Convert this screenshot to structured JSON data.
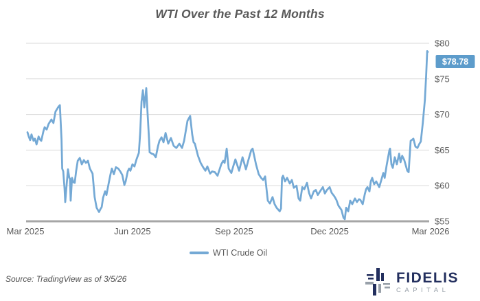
{
  "title": "WTI Over the Past 12 Months",
  "chart_data": {
    "type": "line",
    "title": "WTI Over the Past 12 Months",
    "xlabel": "",
    "ylabel": "",
    "ylim": [
      55,
      80
    ],
    "xlim_months": [
      0,
      12.05
    ],
    "grid": true,
    "legend_position": "bottom-center",
    "y_ticks": [
      {
        "v": 55,
        "label": "$55"
      },
      {
        "v": 60,
        "label": "$60"
      },
      {
        "v": 65,
        "label": "$65"
      },
      {
        "v": 70,
        "label": "$70"
      },
      {
        "v": 75,
        "label": "$75"
      },
      {
        "v": 80,
        "label": "$80"
      }
    ],
    "x_ticks": [
      {
        "m": 0.0,
        "label": "Mar 2025"
      },
      {
        "m": 3.17,
        "label": "Jun 2025"
      },
      {
        "m": 6.18,
        "label": "Sep 2025"
      },
      {
        "m": 9.01,
        "label": "Dec 2025"
      },
      {
        "m": 12.0,
        "label": "Mar 2026"
      }
    ],
    "last_price": 78.78,
    "last_price_label": "$78.78",
    "colors": {
      "line": "#74a9d5",
      "price_flag_bg": "#5d9ccb",
      "price_flag_text": "#ffffff",
      "grid": "#d9d9d9",
      "axis": "#a6a6a6",
      "tick_text": "#595959"
    },
    "series": [
      {
        "name": "WTI Crude Oil",
        "points": [
          [
            0.06,
            67.5
          ],
          [
            0.1,
            66.9
          ],
          [
            0.14,
            66.4
          ],
          [
            0.18,
            67.2
          ],
          [
            0.24,
            66.3
          ],
          [
            0.28,
            66.6
          ],
          [
            0.33,
            65.8
          ],
          [
            0.39,
            66.9
          ],
          [
            0.43,
            66.5
          ],
          [
            0.47,
            66.3
          ],
          [
            0.53,
            67.6
          ],
          [
            0.57,
            68.2
          ],
          [
            0.63,
            67.9
          ],
          [
            0.69,
            68.7
          ],
          [
            0.77,
            69.3
          ],
          [
            0.83,
            68.8
          ],
          [
            0.89,
            70.4
          ],
          [
            0.98,
            71.1
          ],
          [
            1.02,
            71.3
          ],
          [
            1.07,
            66.5
          ],
          [
            1.09,
            62.4
          ],
          [
            1.12,
            62.0
          ],
          [
            1.16,
            59.6
          ],
          [
            1.18,
            57.7
          ],
          [
            1.22,
            60.1
          ],
          [
            1.26,
            62.3
          ],
          [
            1.3,
            61.1
          ],
          [
            1.32,
            61.0
          ],
          [
            1.34,
            57.9
          ],
          [
            1.38,
            61.1
          ],
          [
            1.42,
            60.5
          ],
          [
            1.46,
            60.4
          ],
          [
            1.5,
            62.0
          ],
          [
            1.55,
            63.5
          ],
          [
            1.61,
            63.9
          ],
          [
            1.67,
            63.0
          ],
          [
            1.73,
            63.6
          ],
          [
            1.79,
            63.2
          ],
          [
            1.85,
            63.5
          ],
          [
            1.91,
            62.4
          ],
          [
            1.99,
            61.7
          ],
          [
            2.05,
            58.4
          ],
          [
            2.11,
            56.9
          ],
          [
            2.18,
            56.3
          ],
          [
            2.22,
            56.7
          ],
          [
            2.26,
            57.0
          ],
          [
            2.3,
            58.3
          ],
          [
            2.36,
            59.2
          ],
          [
            2.4,
            58.7
          ],
          [
            2.46,
            60.2
          ],
          [
            2.52,
            61.6
          ],
          [
            2.56,
            62.4
          ],
          [
            2.62,
            61.6
          ],
          [
            2.68,
            62.6
          ],
          [
            2.75,
            62.4
          ],
          [
            2.81,
            62.0
          ],
          [
            2.87,
            61.5
          ],
          [
            2.93,
            60.1
          ],
          [
            2.97,
            60.6
          ],
          [
            3.03,
            62.0
          ],
          [
            3.07,
            62.4
          ],
          [
            3.11,
            62.1
          ],
          [
            3.17,
            63.0
          ],
          [
            3.23,
            62.7
          ],
          [
            3.29,
            63.7
          ],
          [
            3.36,
            64.6
          ],
          [
            3.4,
            67.5
          ],
          [
            3.44,
            71.8
          ],
          [
            3.48,
            73.4
          ],
          [
            3.52,
            71.0
          ],
          [
            3.58,
            73.7
          ],
          [
            3.62,
            70.0
          ],
          [
            3.66,
            66.6
          ],
          [
            3.68,
            64.7
          ],
          [
            3.74,
            64.5
          ],
          [
            3.8,
            64.4
          ],
          [
            3.86,
            64.0
          ],
          [
            3.93,
            65.6
          ],
          [
            3.97,
            66.3
          ],
          [
            4.03,
            66.8
          ],
          [
            4.09,
            66.1
          ],
          [
            4.15,
            67.4
          ],
          [
            4.23,
            65.9
          ],
          [
            4.31,
            66.7
          ],
          [
            4.39,
            65.6
          ],
          [
            4.47,
            65.3
          ],
          [
            4.56,
            65.9
          ],
          [
            4.64,
            65.3
          ],
          [
            4.7,
            66.3
          ],
          [
            4.8,
            69.1
          ],
          [
            4.88,
            69.8
          ],
          [
            4.94,
            67.2
          ],
          [
            4.98,
            66.1
          ],
          [
            5.02,
            65.9
          ],
          [
            5.11,
            64.2
          ],
          [
            5.19,
            63.2
          ],
          [
            5.25,
            62.7
          ],
          [
            5.33,
            62.1
          ],
          [
            5.39,
            62.7
          ],
          [
            5.47,
            61.7
          ],
          [
            5.53,
            62.0
          ],
          [
            5.61,
            61.9
          ],
          [
            5.69,
            61.4
          ],
          [
            5.8,
            63.0
          ],
          [
            5.86,
            63.5
          ],
          [
            5.9,
            63.2
          ],
          [
            5.96,
            65.2
          ],
          [
            6.02,
            62.4
          ],
          [
            6.1,
            61.8
          ],
          [
            6.16,
            62.8
          ],
          [
            6.22,
            63.7
          ],
          [
            6.33,
            62.1
          ],
          [
            6.43,
            64.0
          ],
          [
            6.53,
            62.3
          ],
          [
            6.61,
            63.7
          ],
          [
            6.69,
            65.0
          ],
          [
            6.73,
            65.2
          ],
          [
            6.83,
            63.0
          ],
          [
            6.91,
            61.6
          ],
          [
            6.98,
            61.1
          ],
          [
            7.04,
            60.8
          ],
          [
            7.1,
            61.3
          ],
          [
            7.18,
            57.9
          ],
          [
            7.24,
            57.5
          ],
          [
            7.32,
            58.4
          ],
          [
            7.38,
            57.4
          ],
          [
            7.44,
            56.9
          ],
          [
            7.53,
            56.4
          ],
          [
            7.57,
            56.8
          ],
          [
            7.6,
            61.1
          ],
          [
            7.63,
            61.4
          ],
          [
            7.69,
            60.6
          ],
          [
            7.75,
            61.1
          ],
          [
            7.83,
            60.3
          ],
          [
            7.89,
            60.8
          ],
          [
            7.95,
            59.7
          ],
          [
            8.03,
            60.0
          ],
          [
            8.09,
            58.2
          ],
          [
            8.14,
            57.9
          ],
          [
            8.2,
            59.8
          ],
          [
            8.26,
            59.5
          ],
          [
            8.34,
            60.4
          ],
          [
            8.4,
            59.0
          ],
          [
            8.46,
            58.2
          ],
          [
            8.54,
            59.2
          ],
          [
            8.6,
            59.4
          ],
          [
            8.66,
            58.7
          ],
          [
            8.74,
            59.3
          ],
          [
            8.81,
            59.8
          ],
          [
            8.87,
            58.9
          ],
          [
            8.93,
            59.4
          ],
          [
            9.01,
            59.8
          ],
          [
            9.07,
            59.0
          ],
          [
            9.15,
            58.5
          ],
          [
            9.21,
            58.0
          ],
          [
            9.27,
            57.2
          ],
          [
            9.36,
            56.6
          ],
          [
            9.42,
            55.5
          ],
          [
            9.46,
            55.3
          ],
          [
            9.5,
            56.9
          ],
          [
            9.56,
            56.4
          ],
          [
            9.62,
            57.9
          ],
          [
            9.68,
            57.4
          ],
          [
            9.76,
            58.2
          ],
          [
            9.82,
            57.7
          ],
          [
            9.88,
            58.1
          ],
          [
            9.92,
            58.0
          ],
          [
            9.99,
            57.4
          ],
          [
            10.05,
            58.8
          ],
          [
            10.09,
            59.5
          ],
          [
            10.13,
            59.8
          ],
          [
            10.19,
            59.2
          ],
          [
            10.23,
            60.6
          ],
          [
            10.27,
            61.1
          ],
          [
            10.33,
            60.2
          ],
          [
            10.39,
            60.6
          ],
          [
            10.48,
            59.8
          ],
          [
            10.54,
            60.8
          ],
          [
            10.6,
            61.8
          ],
          [
            10.64,
            61.1
          ],
          [
            10.7,
            62.9
          ],
          [
            10.78,
            65.0
          ],
          [
            10.8,
            65.2
          ],
          [
            10.84,
            63.0
          ],
          [
            10.88,
            62.5
          ],
          [
            10.94,
            64.0
          ],
          [
            11.0,
            63.0
          ],
          [
            11.07,
            64.5
          ],
          [
            11.11,
            63.3
          ],
          [
            11.16,
            64.2
          ],
          [
            11.22,
            63.6
          ],
          [
            11.31,
            62.1
          ],
          [
            11.35,
            61.9
          ],
          [
            11.41,
            66.3
          ],
          [
            11.49,
            66.6
          ],
          [
            11.55,
            65.5
          ],
          [
            11.61,
            65.3
          ],
          [
            11.67,
            65.9
          ],
          [
            11.71,
            66.2
          ],
          [
            11.77,
            68.8
          ],
          [
            11.83,
            72.0
          ],
          [
            11.87,
            75.5
          ],
          [
            11.9,
            78.9
          ],
          [
            11.92,
            78.78
          ]
        ]
      }
    ]
  },
  "legend": {
    "label": "WTI Crude Oil"
  },
  "source": "Source: TradingView as of 3/5/26",
  "logo": {
    "name": "FIDELIS",
    "subname": "CAPITAL"
  }
}
